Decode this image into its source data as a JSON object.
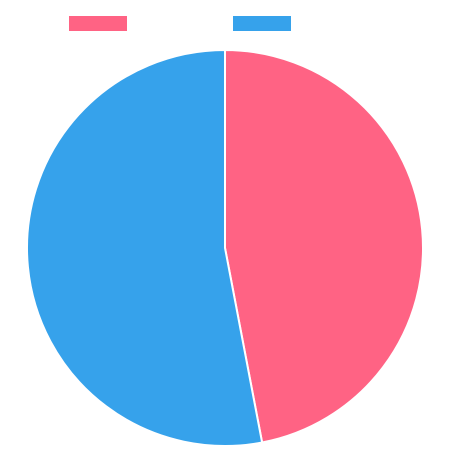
{
  "chart_data": {
    "type": "pie",
    "title": "",
    "legend": {
      "position": "top",
      "entries": [
        {
          "label": "",
          "color": "#FF6384"
        },
        {
          "label": "",
          "color": "#36A2EB"
        }
      ]
    },
    "series": [
      {
        "values": [
          47,
          53
        ],
        "colors": [
          "#FF6384",
          "#36A2EB"
        ]
      }
    ],
    "start_angle_deg": -90,
    "slice_border_color": "#ffffff"
  }
}
